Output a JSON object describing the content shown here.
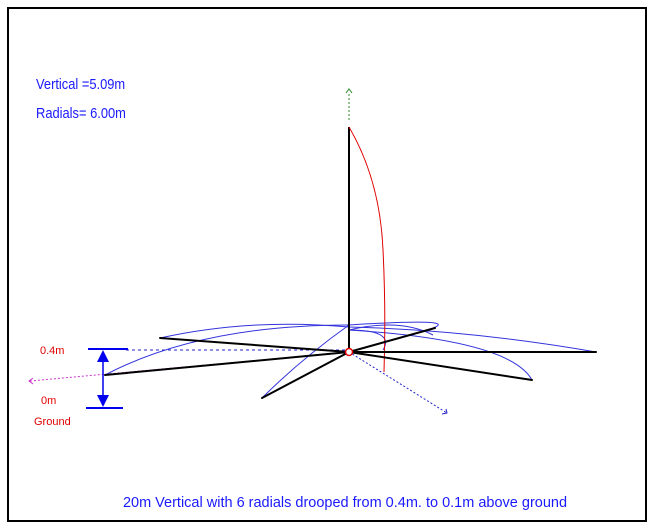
{
  "info": {
    "vertical_text": "Vertical =5.09m",
    "radials_text": "Radials= 6.00m"
  },
  "height_marker": {
    "top_label": "0.4m",
    "bottom_label_line1": "0m",
    "bottom_label_line2": "Ground"
  },
  "caption": "20m Vertical with 6 radials drooped from 0.4m. to 0.1m above ground",
  "colors": {
    "info_text": "#1a1aff",
    "marker_text": "#e00000",
    "caption_text": "#1a1aff",
    "wire": "#000000",
    "current_curve": "#e00000",
    "radial_current": "#3333dd",
    "axis_blue": "#2222cc",
    "axis_magenta": "#cc33cc",
    "arrow": "#0000ee"
  }
}
